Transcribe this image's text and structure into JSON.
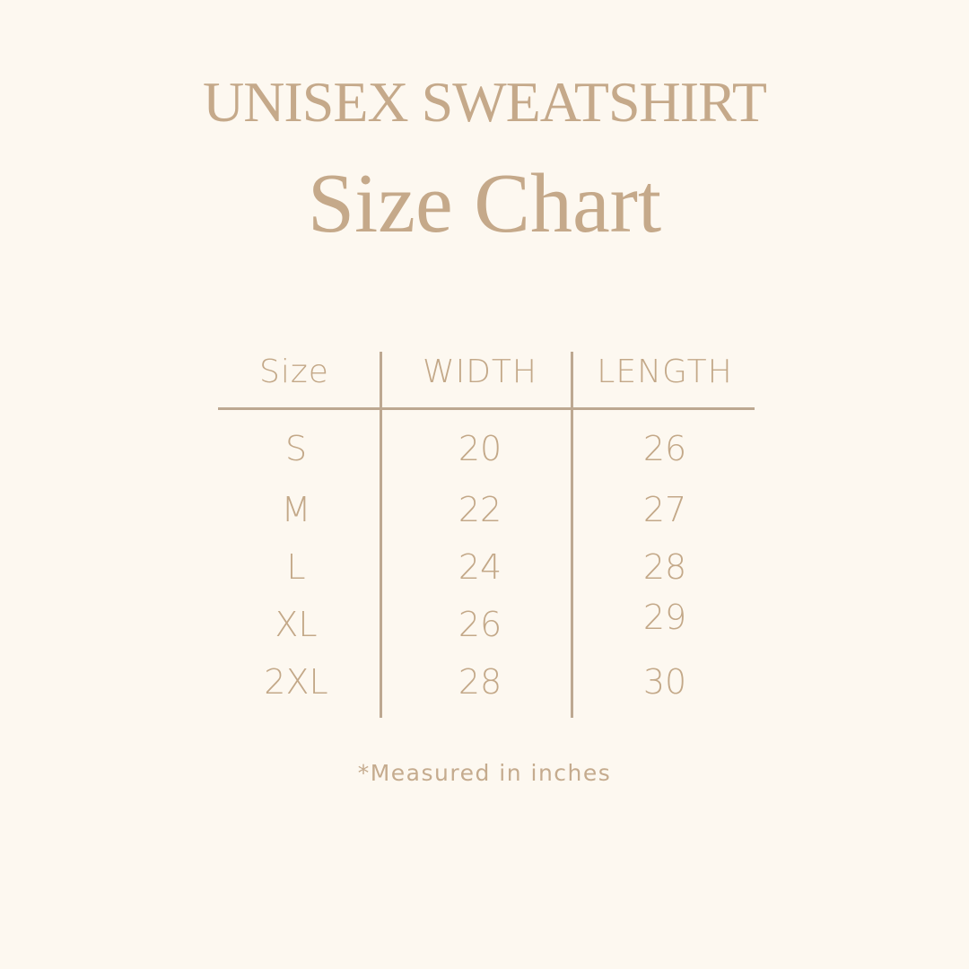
{
  "title": "UNISEX SWEATSHIRT",
  "subtitle": "Size Chart",
  "colors": {
    "background": "#fdf8f0",
    "text": "#c5a98a",
    "rule": "#bda891"
  },
  "table": {
    "headers": [
      "Size",
      "WIDTH",
      "LENGTH"
    ],
    "rows": [
      [
        "S",
        "20",
        "26"
      ],
      [
        "M",
        "22",
        "27"
      ],
      [
        "L",
        "24",
        "28"
      ],
      [
        "XL",
        "26",
        "29"
      ],
      [
        "2XL",
        "28",
        "30"
      ]
    ]
  },
  "note": "*Measured in inches"
}
